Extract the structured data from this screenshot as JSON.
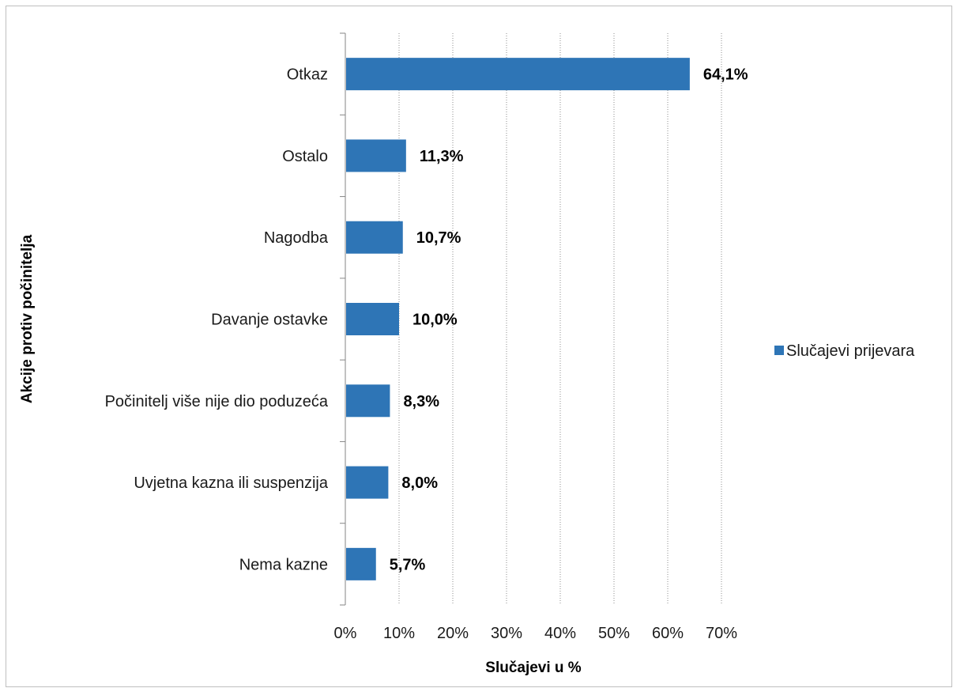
{
  "chart_data": {
    "type": "bar",
    "orientation": "horizontal",
    "categories": [
      "Otkaz",
      "Ostalo",
      "Nagodba",
      "Davanje ostavke",
      "Počinitelj više nije dio poduzeća",
      "Uvjetna kazna ili suspenzija",
      "Nema kazne"
    ],
    "series": [
      {
        "name": "Slučajevi prijevara",
        "values": [
          64.1,
          11.3,
          10.7,
          10.0,
          8.3,
          8.0,
          5.7
        ],
        "color": "#2e75b6"
      }
    ],
    "data_labels": [
      "64,1%",
      "11,3%",
      "10,7%",
      "10,0%",
      "8,3%",
      "8,0%",
      "5,7%"
    ],
    "xlabel": "Slučajevi u %",
    "ylabel": "Akcije protiv počinitelja",
    "xlim": [
      0,
      70
    ],
    "x_ticks": [
      "0%",
      "10%",
      "20%",
      "30%",
      "40%",
      "50%",
      "60%",
      "70%"
    ],
    "grid": "vertical dotted",
    "legend": "right"
  }
}
